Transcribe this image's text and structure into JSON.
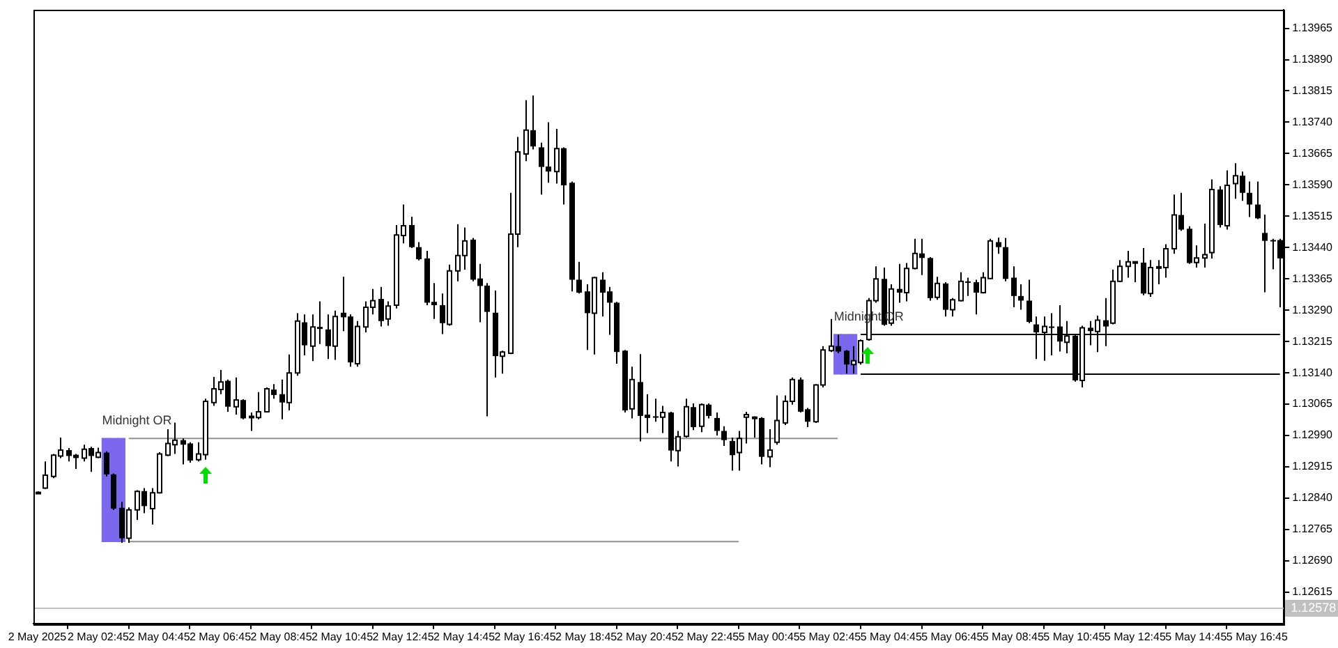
{
  "chart_data": {
    "type": "candlestick",
    "categories": [
      "2 May 2025",
      null,
      null,
      null,
      null,
      null,
      null,
      null,
      "2 May 02:45",
      null,
      null,
      null,
      null,
      null,
      null,
      null,
      "2 May 04:45",
      null,
      null,
      null,
      null,
      null,
      null,
      null,
      "2 May 06:45",
      null,
      null,
      null,
      null,
      null,
      null,
      null,
      "2 May 08:45",
      null,
      null,
      null,
      null,
      null,
      null,
      null,
      "2 May 10:45",
      null,
      null,
      null,
      null,
      null,
      null,
      null,
      "2 May 12:45",
      null,
      null,
      null,
      null,
      null,
      null,
      null,
      "2 May 14:45",
      null,
      null,
      null,
      null,
      null,
      null,
      null,
      "2 May 16:45",
      null,
      null,
      null,
      null,
      null,
      null,
      null,
      "2 May 18:45",
      null,
      null,
      null,
      null,
      null,
      null,
      null,
      "2 May 20:45",
      null,
      null,
      null,
      null,
      null,
      null,
      null,
      "2 May 22:45",
      null,
      null,
      null,
      null,
      null,
      null,
      null,
      "5 May 00:45",
      null,
      null,
      null,
      null,
      null,
      null,
      null,
      "5 May 02:45",
      null,
      null,
      null,
      null,
      null,
      null,
      null,
      "5 May 04:45",
      null,
      null,
      null,
      null,
      null,
      null,
      null,
      "5 May 06:45",
      null,
      null,
      null,
      null,
      null,
      null,
      null,
      "5 May 08:45",
      null,
      null,
      null,
      null,
      null,
      null,
      null,
      "5 May 10:45",
      null,
      null,
      null,
      null,
      null,
      null,
      null,
      "5 May 12:45",
      null,
      null,
      null,
      null,
      null,
      null,
      null,
      "5 May 14:45",
      null,
      null,
      null,
      null,
      null,
      null,
      null,
      "5 May 16:45",
      null,
      null,
      null
    ],
    "ohlc": [
      [
        1.12853,
        1.12856,
        1.12851,
        1.12854
      ],
      [
        1.12864,
        1.12928,
        1.12862,
        1.12895
      ],
      [
        1.12892,
        1.12946,
        1.12888,
        1.12943
      ],
      [
        1.12941,
        1.12985,
        1.12936,
        1.12955
      ],
      [
        1.12955,
        1.1296,
        1.12928,
        1.12941
      ],
      [
        1.12944,
        1.12946,
        1.1291,
        1.12936
      ],
      [
        1.12936,
        1.12968,
        1.12928,
        1.12957
      ],
      [
        1.1296,
        1.12963,
        1.12903,
        1.12941
      ],
      [
        1.12938,
        1.12961,
        1.12936,
        1.12949
      ],
      [
        1.12949,
        1.12952,
        1.12892,
        1.12897
      ],
      [
        1.12897,
        1.12899,
        1.12812,
        1.12815
      ],
      [
        1.12817,
        1.12831,
        1.12733,
        1.12744
      ],
      [
        1.12744,
        1.12818,
        1.12733,
        1.12812
      ],
      [
        1.12812,
        1.12859,
        1.12788,
        1.12856
      ],
      [
        1.12857,
        1.12864,
        1.12804,
        1.12821
      ],
      [
        1.12815,
        1.12864,
        1.12777,
        1.12853
      ],
      [
        1.12853,
        1.1295,
        1.12851,
        1.12946
      ],
      [
        1.12943,
        1.13005,
        1.12941,
        1.12971
      ],
      [
        1.12968,
        1.13021,
        1.12946,
        1.12979
      ],
      [
        1.12979,
        1.12983,
        1.12921,
        1.12968
      ],
      [
        1.12971,
        1.12974,
        1.12925,
        1.1293
      ],
      [
        1.12932,
        1.12974,
        1.12928,
        1.12946
      ],
      [
        1.12944,
        1.13078,
        1.12932,
        1.13072
      ],
      [
        1.13069,
        1.1313,
        1.13061,
        1.13102
      ],
      [
        1.131,
        1.13147,
        1.13089,
        1.13118
      ],
      [
        1.13121,
        1.13124,
        1.13047,
        1.13059
      ],
      [
        1.13059,
        1.13129,
        1.1304,
        1.13075
      ],
      [
        1.13075,
        1.13077,
        1.13029,
        1.13031
      ],
      [
        1.13034,
        1.13045,
        1.13001,
        1.13036
      ],
      [
        1.13033,
        1.13094,
        1.13029,
        1.13047
      ],
      [
        1.13047,
        1.13105,
        1.13045,
        1.13102
      ],
      [
        1.131,
        1.13113,
        1.13078,
        1.13087
      ],
      [
        1.13089,
        1.13124,
        1.13029,
        1.13069
      ],
      [
        1.13069,
        1.13184,
        1.1305,
        1.1314
      ],
      [
        1.1314,
        1.13283,
        1.13133,
        1.13264
      ],
      [
        1.13261,
        1.1328,
        1.13182,
        1.13206
      ],
      [
        1.13204,
        1.1328,
        1.13168,
        1.1325
      ],
      [
        1.1325,
        1.13311,
        1.13209,
        1.13245
      ],
      [
        1.13244,
        1.1328,
        1.13173,
        1.13204
      ],
      [
        1.13204,
        1.13289,
        1.13171,
        1.13275
      ],
      [
        1.13284,
        1.1337,
        1.1324,
        1.13273
      ],
      [
        1.13275,
        1.1328,
        1.13155,
        1.13165
      ],
      [
        1.13162,
        1.13264,
        1.13155,
        1.13251
      ],
      [
        1.1325,
        1.13311,
        1.13237,
        1.13297
      ],
      [
        1.13297,
        1.13341,
        1.1328,
        1.13313
      ],
      [
        1.13317,
        1.13346,
        1.13251,
        1.13264
      ],
      [
        1.13269,
        1.13311,
        1.13253,
        1.133
      ],
      [
        1.13302,
        1.13494,
        1.13294,
        1.1347
      ],
      [
        1.13469,
        1.13543,
        1.1345,
        1.13492
      ],
      [
        1.13494,
        1.13514,
        1.13439,
        1.13441
      ],
      [
        1.13441,
        1.13453,
        1.13409,
        1.13412
      ],
      [
        1.13414,
        1.13432,
        1.13302,
        1.13308
      ],
      [
        1.1331,
        1.13355,
        1.13269,
        1.13302
      ],
      [
        1.13302,
        1.1333,
        1.13233,
        1.13259
      ],
      [
        1.13256,
        1.13399,
        1.13253,
        1.13384
      ],
      [
        1.13384,
        1.13496,
        1.13359,
        1.13421
      ],
      [
        1.13421,
        1.13488,
        1.13387,
        1.13456
      ],
      [
        1.13459,
        1.13463,
        1.13359,
        1.13363
      ],
      [
        1.13366,
        1.13401,
        1.13261,
        1.13348
      ],
      [
        1.13349,
        1.13355,
        1.13036,
        1.13286
      ],
      [
        1.13284,
        1.13337,
        1.13129,
        1.1318
      ],
      [
        1.1318,
        1.13193,
        1.13138,
        1.1319
      ],
      [
        1.13187,
        1.13571,
        1.13185,
        1.13472
      ],
      [
        1.13472,
        1.13705,
        1.13441,
        1.13669
      ],
      [
        1.13664,
        1.13793,
        1.13647,
        1.13721
      ],
      [
        1.13721,
        1.13804,
        1.13675,
        1.13682
      ],
      [
        1.1368,
        1.13691,
        1.13567,
        1.13633
      ],
      [
        1.13634,
        1.1374,
        1.13595,
        1.13622
      ],
      [
        1.13622,
        1.13724,
        1.13593,
        1.13677
      ],
      [
        1.13678,
        1.1368,
        1.13543,
        1.13589
      ],
      [
        1.13595,
        1.13598,
        1.13335,
        1.13363
      ],
      [
        1.13363,
        1.13406,
        1.1333,
        1.13332
      ],
      [
        1.13335,
        1.13352,
        1.13195,
        1.13283
      ],
      [
        1.13283,
        1.1337,
        1.13184,
        1.13368
      ],
      [
        1.13363,
        1.13381,
        1.13275,
        1.13332
      ],
      [
        1.13335,
        1.13346,
        1.13231,
        1.13308
      ],
      [
        1.13308,
        1.1331,
        1.13162,
        1.1319
      ],
      [
        1.13193,
        1.13195,
        1.13045,
        1.1305
      ],
      [
        1.13054,
        1.13155,
        1.13031,
        1.13124
      ],
      [
        1.13118,
        1.13185,
        1.12976,
        1.13037
      ],
      [
        1.1304,
        1.13089,
        1.12996,
        1.13032
      ],
      [
        1.13036,
        1.13078,
        1.13023,
        1.13033
      ],
      [
        1.13034,
        1.13061,
        1.12996,
        1.13045
      ],
      [
        1.13045,
        1.13047,
        1.12928,
        1.12954
      ],
      [
        1.12954,
        1.13001,
        1.12916,
        1.12987
      ],
      [
        1.12988,
        1.13078,
        1.12985,
        1.13059
      ],
      [
        1.13058,
        1.13067,
        1.13003,
        1.1301
      ],
      [
        1.13012,
        1.13067,
        1.12998,
        1.13064
      ],
      [
        1.13064,
        1.13067,
        1.13031,
        1.13037
      ],
      [
        1.13032,
        1.13045,
        1.1299,
        1.13001
      ],
      [
        1.13001,
        1.13012,
        1.12965,
        1.12979
      ],
      [
        1.12977,
        1.12985,
        1.12906,
        1.12943
      ],
      [
        1.12949,
        1.13001,
        1.12906,
        1.12983
      ],
      [
        1.13034,
        1.13047,
        1.12971,
        1.1304
      ],
      [
        1.13033,
        1.13036,
        1.12985,
        1.13034
      ],
      [
        1.13032,
        1.13034,
        1.12921,
        1.12939
      ],
      [
        1.12939,
        1.13005,
        1.12914,
        1.12955
      ],
      [
        1.12974,
        1.13086,
        1.12968,
        1.13026
      ],
      [
        1.1302,
        1.13086,
        1.13015,
        1.13072
      ],
      [
        1.13072,
        1.13129,
        1.13064,
        1.13124
      ],
      [
        1.13124,
        1.13129,
        1.13045,
        1.13047
      ],
      [
        1.13053,
        1.13056,
        1.1301,
        1.13023
      ],
      [
        1.13023,
        1.13113,
        1.1302,
        1.13111
      ],
      [
        1.13111,
        1.13204,
        1.13105,
        1.13195
      ],
      [
        1.13193,
        1.13269,
        1.1319,
        1.13204
      ],
      [
        1.13204,
        1.13231,
        1.13187,
        1.13191
      ],
      [
        1.13193,
        1.13195,
        1.13138,
        1.1316
      ],
      [
        1.1316,
        1.13204,
        1.13138,
        1.13169
      ],
      [
        1.13165,
        1.1322,
        1.1316,
        1.13217
      ],
      [
        1.1322,
        1.13319,
        1.13217,
        1.13313
      ],
      [
        1.13313,
        1.13395,
        1.13308,
        1.13365
      ],
      [
        1.13365,
        1.13392,
        1.13253,
        1.13255
      ],
      [
        1.13259,
        1.13352,
        1.13253,
        1.13341
      ],
      [
        1.13341,
        1.13401,
        1.13308,
        1.13332
      ],
      [
        1.13332,
        1.13403,
        1.13311,
        1.1339
      ],
      [
        1.1339,
        1.13461,
        1.13388,
        1.13426
      ],
      [
        1.13426,
        1.13461,
        1.13374,
        1.13415
      ],
      [
        1.13415,
        1.13417,
        1.13313,
        1.13319
      ],
      [
        1.13321,
        1.1337,
        1.13315,
        1.13354
      ],
      [
        1.13354,
        1.13357,
        1.13275,
        1.13291
      ],
      [
        1.13291,
        1.13319,
        1.13275,
        1.13315
      ],
      [
        1.13313,
        1.13381,
        1.13311,
        1.13359
      ],
      [
        1.13359,
        1.13368,
        1.13324,
        1.13358
      ],
      [
        1.13357,
        1.13363,
        1.1328,
        1.13332
      ],
      [
        1.13332,
        1.13381,
        1.1333,
        1.13368
      ],
      [
        1.13366,
        1.13461,
        1.13365,
        1.13456
      ],
      [
        1.13453,
        1.13464,
        1.13425,
        1.13441
      ],
      [
        1.13441,
        1.13463,
        1.13359,
        1.13365
      ],
      [
        1.13368,
        1.13395,
        1.13297,
        1.13324
      ],
      [
        1.13324,
        1.13352,
        1.13291,
        1.13313
      ],
      [
        1.13313,
        1.13363,
        1.13259,
        1.13262
      ],
      [
        1.13256,
        1.13275,
        1.13173,
        1.13237
      ],
      [
        1.13237,
        1.13275,
        1.13169,
        1.13251
      ],
      [
        1.13251,
        1.13283,
        1.13182,
        1.1325
      ],
      [
        1.13251,
        1.13302,
        1.13191,
        1.13215
      ],
      [
        1.13213,
        1.13264,
        1.13187,
        1.13228
      ],
      [
        1.13229,
        1.13231,
        1.13119,
        1.13122
      ],
      [
        1.13122,
        1.13253,
        1.13105,
        1.13248
      ],
      [
        1.13248,
        1.13264,
        1.13206,
        1.1324
      ],
      [
        1.13239,
        1.13277,
        1.1319,
        1.13266
      ],
      [
        1.13266,
        1.13319,
        1.13204,
        1.13251
      ],
      [
        1.13259,
        1.13387,
        1.13256,
        1.13359
      ],
      [
        1.13359,
        1.1341,
        1.13357,
        1.13395
      ],
      [
        1.13395,
        1.13432,
        1.13368,
        1.13406
      ],
      [
        1.13405,
        1.13407,
        1.13357,
        1.13406
      ],
      [
        1.13404,
        1.13439,
        1.13326,
        1.1333
      ],
      [
        1.1333,
        1.1341,
        1.13322,
        1.13392
      ],
      [
        1.13393,
        1.1341,
        1.13352,
        1.13394
      ],
      [
        1.13392,
        1.13448,
        1.13368,
        1.13437
      ],
      [
        1.13437,
        1.13567,
        1.13425,
        1.13518
      ],
      [
        1.13518,
        1.13571,
        1.1348,
        1.13483
      ],
      [
        1.13485,
        1.13491,
        1.13401,
        1.13403
      ],
      [
        1.13404,
        1.13445,
        1.13392,
        1.13415
      ],
      [
        1.13415,
        1.13497,
        1.13392,
        1.13423
      ],
      [
        1.13428,
        1.13603,
        1.13414,
        1.13579
      ],
      [
        1.13579,
        1.13587,
        1.13488,
        1.13494
      ],
      [
        1.13492,
        1.13625,
        1.13483,
        1.13589
      ],
      [
        1.13593,
        1.13642,
        1.13557,
        1.13612
      ],
      [
        1.13612,
        1.13622,
        1.13552,
        1.13571
      ],
      [
        1.13571,
        1.13598,
        1.13513,
        1.13543
      ],
      [
        1.13543,
        1.13598,
        1.13508,
        1.1351
      ],
      [
        1.13475,
        1.13519,
        1.13333,
        1.13456
      ],
      [
        1.13458,
        1.13461,
        1.13388,
        1.13456
      ],
      [
        1.13458,
        1.13461,
        1.13297,
        1.13414
      ]
    ],
    "series": [
      {
        "type": "bar",
        "name": "Midnight OR",
        "color": "#7b68ee",
        "values": [
          null,
          null,
          null,
          null,
          null,
          null,
          null,
          null,
          null,
          0.00247,
          0.00247,
          0.00247,
          null,
          null,
          null,
          null,
          null,
          null,
          null,
          null,
          null,
          null,
          null,
          null,
          null,
          null,
          null,
          null,
          null,
          null,
          null,
          null,
          null,
          null,
          null,
          null,
          null,
          null,
          null,
          null,
          null,
          null,
          null,
          null,
          null,
          null,
          null,
          null,
          null,
          null,
          null,
          null,
          null,
          null,
          null,
          null,
          null,
          null,
          null,
          null,
          null,
          null,
          null,
          null,
          null,
          null,
          null,
          null,
          null,
          null,
          null,
          null,
          null,
          null,
          null,
          null,
          null,
          null,
          null,
          null,
          null,
          null,
          null,
          null,
          null,
          null,
          null,
          null,
          null,
          null,
          null,
          null,
          null,
          null,
          null,
          null,
          null,
          null,
          null,
          null,
          null,
          null,
          null,
          null,
          null,
          0.00095,
          0.00095,
          0.00095,
          null,
          null,
          null,
          null,
          null,
          null,
          null,
          null,
          null,
          null,
          null,
          null,
          null,
          null,
          null,
          null,
          null,
          null,
          null,
          null,
          null,
          null,
          null,
          null,
          null,
          null,
          null,
          null,
          null,
          null,
          null,
          null,
          null,
          null,
          null,
          null,
          null,
          null,
          null,
          null,
          null,
          null,
          null,
          null,
          null,
          null,
          null,
          null,
          null,
          null,
          null,
          null,
          null,
          null,
          null,
          null
        ],
        "base": [
          null,
          null,
          null,
          null,
          null,
          null,
          null,
          null,
          null,
          1.12736,
          1.12736,
          1.12736,
          null,
          null,
          null,
          null,
          null,
          null,
          null,
          null,
          null,
          null,
          null,
          null,
          null,
          null,
          null,
          null,
          null,
          null,
          null,
          null,
          null,
          null,
          null,
          null,
          null,
          null,
          null,
          null,
          null,
          null,
          null,
          null,
          null,
          null,
          null,
          null,
          null,
          null,
          null,
          null,
          null,
          null,
          null,
          null,
          null,
          null,
          null,
          null,
          null,
          null,
          null,
          null,
          null,
          null,
          null,
          null,
          null,
          null,
          null,
          null,
          null,
          null,
          null,
          null,
          null,
          null,
          null,
          null,
          null,
          null,
          null,
          null,
          null,
          null,
          null,
          null,
          null,
          null,
          null,
          null,
          null,
          null,
          null,
          null,
          null,
          null,
          null,
          null,
          null,
          null,
          null,
          null,
          null,
          1.13137,
          1.13137,
          1.13137,
          null,
          null,
          null,
          null,
          null,
          null,
          null,
          null,
          null,
          null,
          null,
          null,
          null,
          null,
          null,
          null,
          null,
          null,
          null,
          null,
          null,
          null,
          null,
          null,
          null,
          null,
          null,
          null,
          null,
          null,
          null,
          null,
          null,
          null,
          null,
          null,
          null,
          null,
          null,
          null,
          null,
          null,
          null,
          null,
          null,
          null,
          null,
          null,
          null,
          null,
          null,
          null,
          null,
          null,
          null,
          null
        ]
      },
      {
        "type": "line",
        "color": "#909090",
        "values": [
          null,
          null,
          null,
          null,
          null,
          null,
          null,
          null,
          null,
          null,
          null,
          null,
          1.12983,
          1.12983,
          1.12983,
          1.12983,
          1.12983,
          1.12983,
          1.12983,
          1.12983,
          1.12983,
          1.12983,
          1.12983,
          1.12983,
          1.12983,
          1.12983,
          1.12983,
          1.12983,
          1.12983,
          1.12983,
          1.12983,
          1.12983,
          1.12983,
          1.12983,
          1.12983,
          1.12983,
          1.12983,
          1.12983,
          1.12983,
          1.12983,
          1.12983,
          1.12983,
          1.12983,
          1.12983,
          1.12983,
          1.12983,
          1.12983,
          1.12983,
          1.12983,
          1.12983,
          1.12983,
          1.12983,
          1.12983,
          1.12983,
          1.12983,
          1.12983,
          1.12983,
          1.12983,
          1.12983,
          1.12983,
          1.12983,
          1.12983,
          1.12983,
          1.12983,
          1.12983,
          1.12983,
          1.12983,
          1.12983,
          1.12983,
          1.12983,
          1.12983,
          1.12983,
          1.12983,
          1.12983,
          1.12983,
          1.12983,
          1.12983,
          1.12983,
          1.12983,
          1.12983,
          1.12983,
          1.12983,
          1.12983,
          1.12983,
          1.12983,
          1.12983,
          1.12983,
          1.12983,
          1.12983,
          1.12983,
          1.12983,
          1.12983,
          1.12983,
          1.12983,
          1.12983,
          1.12983,
          1.12983,
          1.12983,
          1.12983,
          1.12983,
          1.12983,
          1.12983,
          1.12983,
          1.12983,
          1.12983,
          1.12983,
          null,
          null,
          null,
          null,
          null,
          null,
          null,
          null,
          null,
          null,
          null,
          null,
          null,
          null,
          null,
          null,
          null,
          null,
          null,
          null,
          null,
          null,
          null,
          null,
          null,
          null,
          null,
          null,
          null,
          null,
          null,
          null,
          null,
          null,
          null,
          null,
          null,
          null,
          null,
          null,
          null,
          null,
          null,
          null,
          null,
          null,
          null,
          null,
          null,
          null,
          null,
          null,
          null,
          null,
          null,
          null,
          null,
          null
        ]
      },
      {
        "type": "line",
        "color": "#909090",
        "values": [
          null,
          null,
          null,
          null,
          null,
          null,
          null,
          null,
          null,
          null,
          null,
          null,
          1.12736,
          1.12736,
          1.12736,
          1.12736,
          1.12736,
          1.12736,
          1.12736,
          1.12736,
          1.12736,
          1.12736,
          1.12736,
          1.12736,
          1.12736,
          1.12736,
          1.12736,
          1.12736,
          1.12736,
          1.12736,
          1.12736,
          1.12736,
          1.12736,
          1.12736,
          1.12736,
          1.12736,
          1.12736,
          1.12736,
          1.12736,
          1.12736,
          1.12736,
          1.12736,
          1.12736,
          1.12736,
          1.12736,
          1.12736,
          1.12736,
          1.12736,
          1.12736,
          1.12736,
          1.12736,
          1.12736,
          1.12736,
          1.12736,
          1.12736,
          1.12736,
          1.12736,
          1.12736,
          1.12736,
          1.12736,
          1.12736,
          1.12736,
          1.12736,
          1.12736,
          1.12736,
          1.12736,
          1.12736,
          1.12736,
          1.12736,
          1.12736,
          1.12736,
          1.12736,
          1.12736,
          1.12736,
          1.12736,
          1.12736,
          1.12736,
          1.12736,
          1.12736,
          1.12736,
          1.12736,
          1.12736,
          1.12736,
          1.12736,
          1.12736,
          1.12736,
          1.12736,
          1.12736,
          1.12736,
          1.12736,
          1.12736,
          1.12736,
          1.12736,
          null,
          null,
          null,
          null,
          null,
          null,
          null,
          null,
          null,
          null,
          null,
          null,
          null,
          null,
          null,
          null,
          null,
          null,
          null,
          null,
          null,
          null,
          null,
          null,
          null,
          null,
          null,
          null,
          null,
          null,
          null,
          null,
          null,
          null,
          null,
          null,
          null,
          null,
          null,
          null,
          null,
          null,
          null,
          null,
          null,
          null,
          null,
          null,
          null,
          null,
          null,
          null,
          null,
          null,
          null,
          null,
          null,
          null,
          null,
          null,
          null,
          null,
          null,
          null,
          null,
          null,
          null,
          null,
          null,
          null,
          null
        ]
      },
      {
        "type": "line",
        "color": "#000000",
        "values": [
          null,
          null,
          null,
          null,
          null,
          null,
          null,
          null,
          null,
          null,
          null,
          null,
          null,
          null,
          null,
          null,
          null,
          null,
          null,
          null,
          null,
          null,
          null,
          null,
          null,
          null,
          null,
          null,
          null,
          null,
          null,
          null,
          null,
          null,
          null,
          null,
          null,
          null,
          null,
          null,
          null,
          null,
          null,
          null,
          null,
          null,
          null,
          null,
          null,
          null,
          null,
          null,
          null,
          null,
          null,
          null,
          null,
          null,
          null,
          null,
          null,
          null,
          null,
          null,
          null,
          null,
          null,
          null,
          null,
          null,
          null,
          null,
          null,
          null,
          null,
          null,
          null,
          null,
          null,
          null,
          null,
          null,
          null,
          null,
          null,
          null,
          null,
          null,
          null,
          null,
          null,
          null,
          null,
          null,
          null,
          null,
          null,
          null,
          null,
          null,
          null,
          null,
          null,
          null,
          null,
          null,
          null,
          null,
          1.13232,
          1.13232,
          1.13232,
          1.13232,
          1.13232,
          1.13232,
          1.13232,
          1.13232,
          1.13232,
          1.13232,
          1.13232,
          1.13232,
          1.13232,
          1.13232,
          1.13232,
          1.13232,
          1.13232,
          1.13232,
          1.13232,
          1.13232,
          1.13232,
          1.13232,
          1.13232,
          1.13232,
          1.13232,
          1.13232,
          1.13232,
          1.13232,
          1.13232,
          1.13232,
          1.13232,
          1.13232,
          1.13232,
          1.13232,
          1.13232,
          1.13232,
          1.13232,
          1.13232,
          1.13232,
          1.13232,
          1.13232,
          1.13232,
          1.13232,
          1.13232,
          1.13232,
          1.13232,
          1.13232,
          1.13232,
          1.13232,
          1.13232,
          1.13232,
          1.13232,
          1.13232,
          1.13232,
          1.13232,
          1.13232
        ]
      },
      {
        "type": "line",
        "color": "#000000",
        "values": [
          null,
          null,
          null,
          null,
          null,
          null,
          null,
          null,
          null,
          null,
          null,
          null,
          null,
          null,
          null,
          null,
          null,
          null,
          null,
          null,
          null,
          null,
          null,
          null,
          null,
          null,
          null,
          null,
          null,
          null,
          null,
          null,
          null,
          null,
          null,
          null,
          null,
          null,
          null,
          null,
          null,
          null,
          null,
          null,
          null,
          null,
          null,
          null,
          null,
          null,
          null,
          null,
          null,
          null,
          null,
          null,
          null,
          null,
          null,
          null,
          null,
          null,
          null,
          null,
          null,
          null,
          null,
          null,
          null,
          null,
          null,
          null,
          null,
          null,
          null,
          null,
          null,
          null,
          null,
          null,
          null,
          null,
          null,
          null,
          null,
          null,
          null,
          null,
          null,
          null,
          null,
          null,
          null,
          null,
          null,
          null,
          null,
          null,
          null,
          null,
          null,
          null,
          null,
          null,
          null,
          null,
          null,
          null,
          1.13137,
          1.13137,
          1.13137,
          1.13137,
          1.13137,
          1.13137,
          1.13137,
          1.13137,
          1.13137,
          1.13137,
          1.13137,
          1.13137,
          1.13137,
          1.13137,
          1.13137,
          1.13137,
          1.13137,
          1.13137,
          1.13137,
          1.13137,
          1.13137,
          1.13137,
          1.13137,
          1.13137,
          1.13137,
          1.13137,
          1.13137,
          1.13137,
          1.13137,
          1.13137,
          1.13137,
          1.13137,
          1.13137,
          1.13137,
          1.13137,
          1.13137,
          1.13137,
          1.13137,
          1.13137,
          1.13137,
          1.13137,
          1.13137,
          1.13137,
          1.13137,
          1.13137,
          1.13137,
          1.13137,
          1.13137,
          1.13137,
          1.13137,
          1.13137,
          1.13137,
          1.13137,
          1.13137,
          1.13137,
          1.13137
        ]
      }
    ],
    "ylim": [
      1.1254,
      1.1401
    ],
    "yticks": [
      1.12615,
      {
        "value": 1.1269,
        "label": "1.12690"
      },
      1.12765,
      {
        "value": 1.1284,
        "label": "1.12840"
      },
      1.12915,
      {
        "value": 1.1299,
        "label": "1.12990"
      },
      1.13065,
      {
        "value": 1.1314,
        "label": "1.13140"
      },
      1.13215,
      {
        "value": 1.1329,
        "label": "1.13290"
      },
      1.13365,
      {
        "value": 1.1344,
        "label": "1.13440"
      },
      1.13515,
      {
        "value": 1.1359,
        "label": "1.13590"
      },
      1.13665,
      {
        "value": 1.1374,
        "label": "1.13740"
      },
      1.13815,
      {
        "value": 1.1389,
        "label": "1.13890"
      },
      1.13965
    ],
    "ref_lines": [
      {
        "axis": "y",
        "value": 1.12578,
        "label": "1.12578",
        "color": "#c0c0c0"
      }
    ]
  }
}
